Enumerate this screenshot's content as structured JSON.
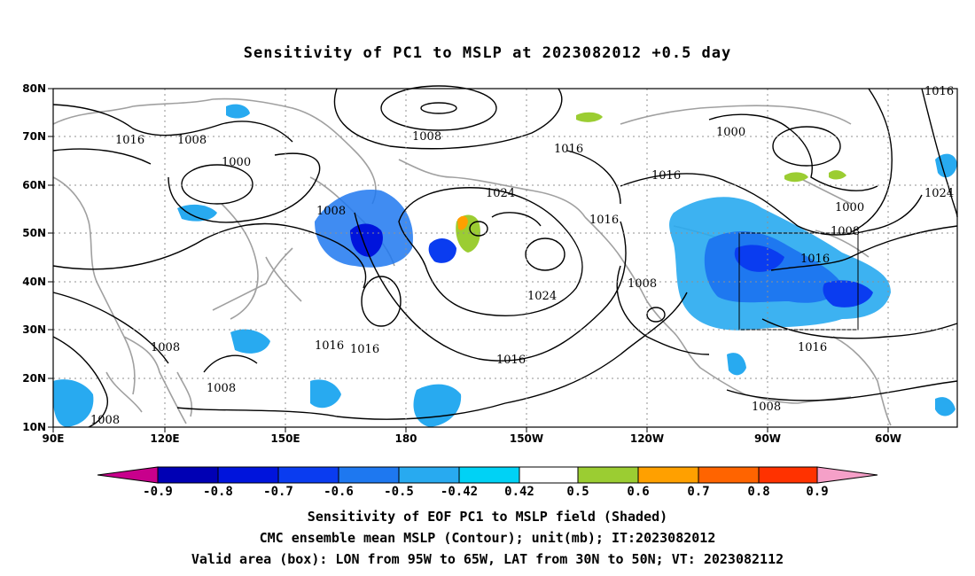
{
  "title": "Sensitivity of PC1 to MSLP at 2023082012 +0.5 day",
  "map": {
    "lat_labels": [
      "80N",
      "70N",
      "60N",
      "50N",
      "40N",
      "30N",
      "20N",
      "10N"
    ],
    "lon_labels": [
      "90E",
      "120E",
      "150E",
      "180",
      "150W",
      "120W",
      "90W",
      "60W"
    ],
    "contour_labels": [
      "1016",
      "1008",
      "1008",
      "1000",
      "1008",
      "1024",
      "1016",
      "1016",
      "1016",
      "1008",
      "1024",
      "1016",
      "1016",
      "1008",
      "1008",
      "1008",
      "1016",
      "1016",
      "1008",
      "1000",
      "1000",
      "1008",
      "1016",
      "1024",
      "1016"
    ],
    "valid_box": {
      "lon_from": "95W",
      "lon_to": "65W",
      "lat_from": "30N",
      "lat_to": "50N"
    }
  },
  "colorbar": {
    "labels": [
      "-0.9",
      "-0.8",
      "-0.7",
      "-0.6",
      "-0.5",
      "-0.42",
      "0.42",
      "0.5",
      "0.6",
      "0.7",
      "0.8",
      "0.9"
    ],
    "colors": [
      "#c8008c",
      "#0000b4",
      "#0014dc",
      "#0a3cf0",
      "#1e78f0",
      "#28aaf0",
      "#00d2f5",
      "#ffffff",
      "#9bcd32",
      "#ffa000",
      "#ff6400",
      "#ff3200",
      "#ff0000",
      "#f5a0c8"
    ]
  },
  "caption": {
    "line1": "Sensitivity of EOF PC1 to MSLP field (Shaded)",
    "line2": "CMC ensemble mean MSLP (Contour); unit(mb); IT:2023082012",
    "line3": "Valid area (box): LON from 95W to 65W, LAT from 30N to 50N; VT: 2023082112"
  }
}
